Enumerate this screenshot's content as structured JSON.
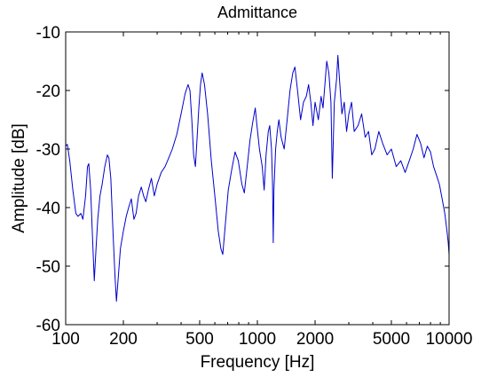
{
  "chart_data": {
    "type": "line",
    "title": "Admittance",
    "xlabel": "Frequency [Hz]",
    "ylabel": "Amplitude [dB]",
    "x_scale": "log",
    "xlim": [
      100,
      10000
    ],
    "ylim": [
      -60,
      -10
    ],
    "x_ticks": [
      100,
      200,
      500,
      1000,
      2000,
      5000,
      10000
    ],
    "x_tick_labels": [
      "100",
      "200",
      "500",
      "1000",
      "2000",
      "5000",
      "10000"
    ],
    "y_ticks": [
      -60,
      -50,
      -40,
      -30,
      -20,
      -10
    ],
    "y_tick_labels": [
      "-60",
      "-50",
      "-40",
      "-30",
      "-20",
      "-10"
    ],
    "grid": false,
    "line_color": "#0000cc",
    "series": [
      {
        "points": [
          [
            100,
            -29.5
          ],
          [
            102,
            -29.2
          ],
          [
            105,
            -32
          ],
          [
            109,
            -37
          ],
          [
            113,
            -41
          ],
          [
            116,
            -41.5
          ],
          [
            120,
            -41
          ],
          [
            123,
            -42
          ],
          [
            127,
            -38
          ],
          [
            130,
            -33
          ],
          [
            132,
            -32.5
          ],
          [
            135,
            -37
          ],
          [
            138,
            -45
          ],
          [
            141,
            -52.5
          ],
          [
            144,
            -47
          ],
          [
            147,
            -42
          ],
          [
            151,
            -38
          ],
          [
            155,
            -36
          ],
          [
            160,
            -33
          ],
          [
            165,
            -31
          ],
          [
            168,
            -31.5
          ],
          [
            172,
            -35
          ],
          [
            177,
            -45
          ],
          [
            181,
            -52
          ],
          [
            184,
            -56
          ],
          [
            188,
            -52
          ],
          [
            193,
            -47
          ],
          [
            200,
            -44
          ],
          [
            207,
            -41.5
          ],
          [
            213,
            -40
          ],
          [
            220,
            -38.5
          ],
          [
            227,
            -42
          ],
          [
            233,
            -41
          ],
          [
            240,
            -38
          ],
          [
            248,
            -36.5
          ],
          [
            255,
            -38
          ],
          [
            262,
            -39
          ],
          [
            270,
            -37
          ],
          [
            280,
            -35
          ],
          [
            290,
            -38
          ],
          [
            300,
            -36
          ],
          [
            315,
            -34
          ],
          [
            330,
            -33
          ],
          [
            345,
            -31.5
          ],
          [
            360,
            -30
          ],
          [
            380,
            -27.5
          ],
          [
            400,
            -24
          ],
          [
            420,
            -20.5
          ],
          [
            435,
            -19
          ],
          [
            445,
            -20
          ],
          [
            455,
            -25
          ],
          [
            465,
            -31
          ],
          [
            475,
            -33
          ],
          [
            485,
            -28
          ],
          [
            495,
            -23
          ],
          [
            505,
            -19
          ],
          [
            515,
            -17
          ],
          [
            530,
            -19
          ],
          [
            550,
            -24
          ],
          [
            575,
            -32
          ],
          [
            600,
            -38
          ],
          [
            625,
            -44
          ],
          [
            645,
            -47
          ],
          [
            660,
            -48
          ],
          [
            680,
            -43
          ],
          [
            705,
            -37
          ],
          [
            735,
            -33.5
          ],
          [
            765,
            -30.5
          ],
          [
            795,
            -32
          ],
          [
            830,
            -36
          ],
          [
            855,
            -37.5
          ],
          [
            885,
            -33
          ],
          [
            915,
            -28.5
          ],
          [
            945,
            -25.5
          ],
          [
            975,
            -23
          ],
          [
            995,
            -26
          ],
          [
            1025,
            -30
          ],
          [
            1060,
            -33
          ],
          [
            1085,
            -37
          ],
          [
            1110,
            -31
          ],
          [
            1140,
            -27
          ],
          [
            1160,
            -26
          ],
          [
            1185,
            -30
          ],
          [
            1200,
            -36
          ],
          [
            1210,
            -46
          ],
          [
            1220,
            -37
          ],
          [
            1245,
            -30
          ],
          [
            1270,
            -27
          ],
          [
            1295,
            -25
          ],
          [
            1330,
            -28
          ],
          [
            1380,
            -30
          ],
          [
            1430,
            -25
          ],
          [
            1480,
            -20
          ],
          [
            1530,
            -17
          ],
          [
            1570,
            -16
          ],
          [
            1620,
            -20
          ],
          [
            1680,
            -25
          ],
          [
            1740,
            -22
          ],
          [
            1800,
            -21
          ],
          [
            1850,
            -19
          ],
          [
            1900,
            -22
          ],
          [
            1950,
            -26
          ],
          [
            2000,
            -22
          ],
          [
            2080,
            -25
          ],
          [
            2150,
            -21
          ],
          [
            2200,
            -23
          ],
          [
            2250,
            -19
          ],
          [
            2300,
            -15
          ],
          [
            2360,
            -17
          ],
          [
            2420,
            -22
          ],
          [
            2460,
            -35
          ],
          [
            2520,
            -22
          ],
          [
            2590,
            -18
          ],
          [
            2630,
            -14
          ],
          [
            2680,
            -18
          ],
          [
            2760,
            -24
          ],
          [
            2840,
            -22
          ],
          [
            2920,
            -27
          ],
          [
            3000,
            -24
          ],
          [
            3100,
            -22
          ],
          [
            3200,
            -27
          ],
          [
            3350,
            -26
          ],
          [
            3500,
            -24
          ],
          [
            3650,
            -28
          ],
          [
            3800,
            -27
          ],
          [
            3950,
            -31
          ],
          [
            4100,
            -30
          ],
          [
            4300,
            -27
          ],
          [
            4500,
            -29
          ],
          [
            4750,
            -31
          ],
          [
            5000,
            -30
          ],
          [
            5300,
            -33
          ],
          [
            5600,
            -32
          ],
          [
            5900,
            -34
          ],
          [
            6200,
            -32
          ],
          [
            6500,
            -30
          ],
          [
            6800,
            -27.5
          ],
          [
            7100,
            -29
          ],
          [
            7400,
            -31.5
          ],
          [
            7700,
            -29.5
          ],
          [
            8000,
            -30.5
          ],
          [
            8300,
            -33
          ],
          [
            8600,
            -34.5
          ],
          [
            8900,
            -36
          ],
          [
            9200,
            -38.5
          ],
          [
            9500,
            -41
          ],
          [
            9750,
            -44
          ],
          [
            9900,
            -46
          ],
          [
            10000,
            -48
          ]
        ]
      }
    ]
  }
}
